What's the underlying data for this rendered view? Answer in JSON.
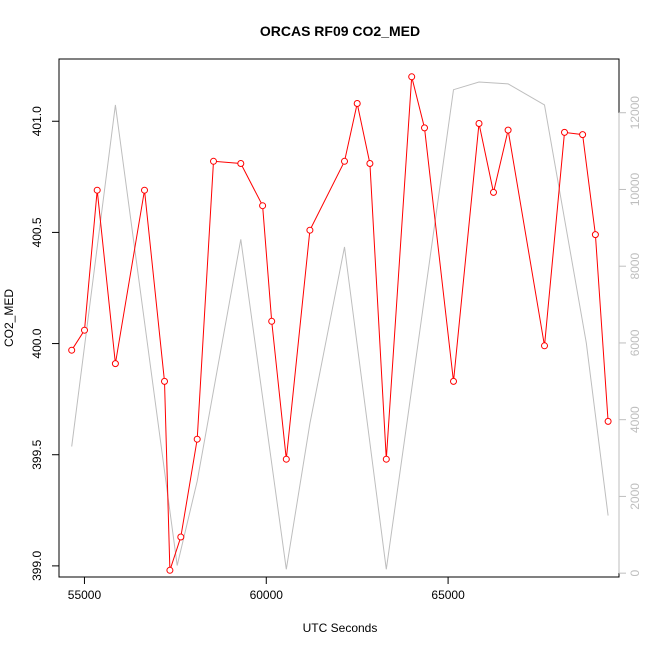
{
  "chart_data": {
    "type": "line",
    "title": "ORCAS RF09 CO2_MED",
    "xlabel": "UTC Seconds",
    "ylabel": "CO2_MED",
    "xlim": [
      54300,
      69700
    ],
    "ylim": [
      398.95,
      401.28
    ],
    "x_ticks": [
      55000,
      60000,
      65000
    ],
    "y_ticks": [
      399.0,
      399.5,
      400.0,
      400.5,
      401.0
    ],
    "y_tick_labels": [
      "399.0",
      "399.5",
      "400.0",
      "400.5",
      "401.0"
    ],
    "y2lim": [
      -100,
      13400
    ],
    "y2_ticks": [
      0,
      2000,
      4000,
      6000,
      8000,
      10000,
      12000
    ],
    "grid": false,
    "series": [
      {
        "axis": "left",
        "color": "#ff0000",
        "style": "line+open-circles",
        "x": [
          54650,
          55000,
          55350,
          55850,
          56650,
          57200,
          57350,
          57650,
          58100,
          58550,
          59300,
          59900,
          60150,
          60550,
          61200,
          62150,
          62500,
          62850,
          63300,
          64000,
          64350,
          65150,
          65850,
          66250,
          66650,
          67650,
          68200,
          68700,
          69050,
          69400
        ],
        "y": [
          399.97,
          400.06,
          400.69,
          399.91,
          400.69,
          399.83,
          398.98,
          399.13,
          399.57,
          400.82,
          400.81,
          400.62,
          400.1,
          399.48,
          400.51,
          400.82,
          401.08,
          400.81,
          399.48,
          401.2,
          400.97,
          399.83,
          400.99,
          400.68,
          400.96,
          399.99,
          400.95,
          400.94,
          400.49,
          399.65
        ]
      },
      {
        "axis": "right",
        "color": "#bebebe",
        "style": "line",
        "x": [
          54650,
          55850,
          57550,
          58100,
          59300,
          60550,
          61200,
          62150,
          63300,
          64000,
          65150,
          65850,
          66650,
          67650,
          68800,
          69400
        ],
        "y": [
          3300,
          12200,
          200,
          2400,
          8700,
          100,
          3900,
          8500,
          100,
          4800,
          12600,
          12800,
          12750,
          12200,
          6000,
          1500
        ]
      }
    ]
  }
}
